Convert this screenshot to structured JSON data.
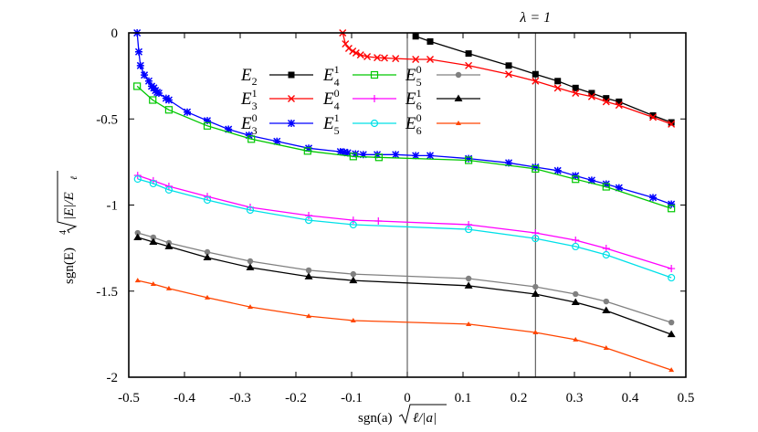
{
  "chart_data": {
    "type": "line",
    "xlabel": {
      "prefix": "sgn(a)",
      "radicand": "ℓ/|a|"
    },
    "ylabel": {
      "prefix": "sgn(E)",
      "root_index": "4",
      "radicand": "|E|/E",
      "radicand_sub": "ℓ"
    },
    "xlim": [
      -0.5,
      0.5
    ],
    "ylim": [
      -2,
      0
    ],
    "x_ticks": [
      "-0.5",
      "-0.4",
      "-0.3",
      "-0.2",
      "-0.1",
      "0",
      "0.1",
      "0.2",
      "0.3",
      "0.4",
      "0.5"
    ],
    "y_ticks": [
      "0",
      "-0.5",
      "-1",
      "-1.5",
      "-2"
    ],
    "grid": false,
    "legend_position": "top-center",
    "vertical_lines": [
      {
        "x": 0,
        "label": ""
      },
      {
        "x": 0.23,
        "label": "λ = 1"
      }
    ],
    "series": [
      {
        "label": {
          "base": "E",
          "sub": "2",
          "sup": ""
        },
        "color": "#000000",
        "marker": "filled-square",
        "x": [
          0.015,
          0.041,
          0.11,
          0.182,
          0.23,
          0.27,
          0.302,
          0.331,
          0.357,
          0.38,
          0.441,
          0.474
        ],
        "y": [
          -0.02,
          -0.05,
          -0.12,
          -0.19,
          -0.24,
          -0.28,
          -0.32,
          -0.35,
          -0.38,
          -0.4,
          -0.48,
          -0.52
        ]
      },
      {
        "label": {
          "base": "E",
          "sub": "3",
          "sup": "1"
        },
        "color": "#ff0000",
        "marker": "x",
        "x": [
          -0.116,
          -0.111,
          -0.105,
          -0.098,
          -0.092,
          -0.084,
          -0.072,
          -0.054,
          -0.041,
          -0.021,
          0.015,
          0.041,
          0.11,
          0.182,
          0.23,
          0.27,
          0.302,
          0.331,
          0.357,
          0.38,
          0.441,
          0.474
        ],
        "y": [
          0,
          -0.064,
          -0.09,
          -0.106,
          -0.117,
          -0.128,
          -0.138,
          -0.144,
          -0.146,
          -0.149,
          -0.154,
          -0.154,
          -0.19,
          -0.24,
          -0.28,
          -0.32,
          -0.35,
          -0.37,
          -0.4,
          -0.42,
          -0.49,
          -0.53
        ]
      },
      {
        "label": {
          "base": "E",
          "sub": "3",
          "sup": "0"
        },
        "color": "#0000ff",
        "marker": "star",
        "x": [
          -0.485,
          -0.482,
          -0.479,
          -0.472,
          -0.464,
          -0.459,
          -0.455,
          -0.452,
          -0.449,
          -0.446,
          -0.433,
          -0.428,
          -0.395,
          -0.359,
          -0.321,
          -0.284,
          -0.234,
          -0.177,
          -0.12,
          -0.113,
          -0.107,
          -0.093,
          -0.079,
          -0.054,
          -0.021,
          0.015,
          0.041,
          0.11,
          0.182,
          0.23,
          0.27,
          0.302,
          0.331,
          0.357,
          0.38,
          0.441,
          0.474
        ],
        "y": [
          0,
          -0.11,
          -0.19,
          -0.245,
          -0.28,
          -0.31,
          -0.32,
          -0.335,
          -0.345,
          -0.35,
          -0.38,
          -0.39,
          -0.46,
          -0.51,
          -0.56,
          -0.595,
          -0.63,
          -0.67,
          -0.69,
          -0.693,
          -0.697,
          -0.703,
          -0.707,
          -0.707,
          -0.707,
          -0.713,
          -0.713,
          -0.73,
          -0.755,
          -0.78,
          -0.8,
          -0.83,
          -0.856,
          -0.878,
          -0.9,
          -0.957,
          -0.995
        ]
      },
      {
        "label": {
          "base": "E",
          "sub": "4",
          "sup": "1"
        },
        "color": "#00c800",
        "marker": "open-square",
        "x": [
          -0.485,
          -0.457,
          -0.428,
          -0.359,
          -0.28,
          -0.179,
          -0.097,
          -0.051,
          0.11,
          0.23,
          0.302,
          0.357,
          0.474
        ],
        "y": [
          -0.31,
          -0.39,
          -0.447,
          -0.54,
          -0.617,
          -0.686,
          -0.718,
          -0.723,
          -0.74,
          -0.79,
          -0.85,
          -0.894,
          -1.02
        ]
      },
      {
        "label": {
          "base": "E",
          "sub": "4",
          "sup": "0"
        },
        "color": "#ff00ff",
        "marker": "plus",
        "x": [
          -0.484,
          -0.456,
          -0.428,
          -0.359,
          -0.282,
          -0.177,
          -0.097,
          -0.052,
          0.11,
          0.23,
          0.302,
          0.357,
          0.474
        ],
        "y": [
          -0.828,
          -0.859,
          -0.891,
          -0.95,
          -1.013,
          -1.061,
          -1.088,
          -1.093,
          -1.114,
          -1.162,
          -1.204,
          -1.252,
          -1.369
        ]
      },
      {
        "label": {
          "base": "E",
          "sub": "5",
          "sup": "1"
        },
        "color": "#00e0e8",
        "marker": "open-circle",
        "x": [
          -0.484,
          -0.456,
          -0.428,
          -0.359,
          -0.282,
          -0.177,
          -0.097,
          0.11,
          0.23,
          0.302,
          0.357,
          0.474
        ],
        "y": [
          -0.849,
          -0.875,
          -0.912,
          -0.971,
          -1.029,
          -1.088,
          -1.114,
          -1.141,
          -1.194,
          -1.241,
          -1.289,
          -1.422
        ]
      },
      {
        "label": {
          "base": "E",
          "sub": "5",
          "sup": "0"
        },
        "color": "#808080",
        "marker": "filled-circle",
        "x": [
          -0.484,
          -0.456,
          -0.428,
          -0.359,
          -0.282,
          -0.177,
          -0.097,
          0.11,
          0.23,
          0.302,
          0.357,
          0.474
        ],
        "y": [
          -1.162,
          -1.188,
          -1.22,
          -1.273,
          -1.326,
          -1.379,
          -1.401,
          -1.427,
          -1.475,
          -1.517,
          -1.56,
          -1.682
        ]
      },
      {
        "label": {
          "base": "E",
          "sub": "6",
          "sup": "1"
        },
        "color": "#000000",
        "marker": "filled-triangle",
        "x": [
          -0.484,
          -0.456,
          -0.428,
          -0.359,
          -0.282,
          -0.177,
          -0.097,
          0.11,
          0.23,
          0.302,
          0.357,
          0.474
        ],
        "y": [
          -1.188,
          -1.215,
          -1.241,
          -1.305,
          -1.363,
          -1.416,
          -1.438,
          -1.469,
          -1.517,
          -1.565,
          -1.613,
          -1.751
        ]
      },
      {
        "label": {
          "base": "E",
          "sub": "6",
          "sup": "0"
        },
        "color": "#ff4500",
        "marker": "small-triangle",
        "x": [
          -0.484,
          -0.456,
          -0.428,
          -0.359,
          -0.282,
          -0.177,
          -0.097,
          0.11,
          0.23,
          0.302,
          0.357,
          0.474
        ],
        "y": [
          -1.438,
          -1.459,
          -1.485,
          -1.538,
          -1.592,
          -1.645,
          -1.671,
          -1.692,
          -1.74,
          -1.782,
          -1.83,
          -1.958
        ]
      }
    ]
  }
}
